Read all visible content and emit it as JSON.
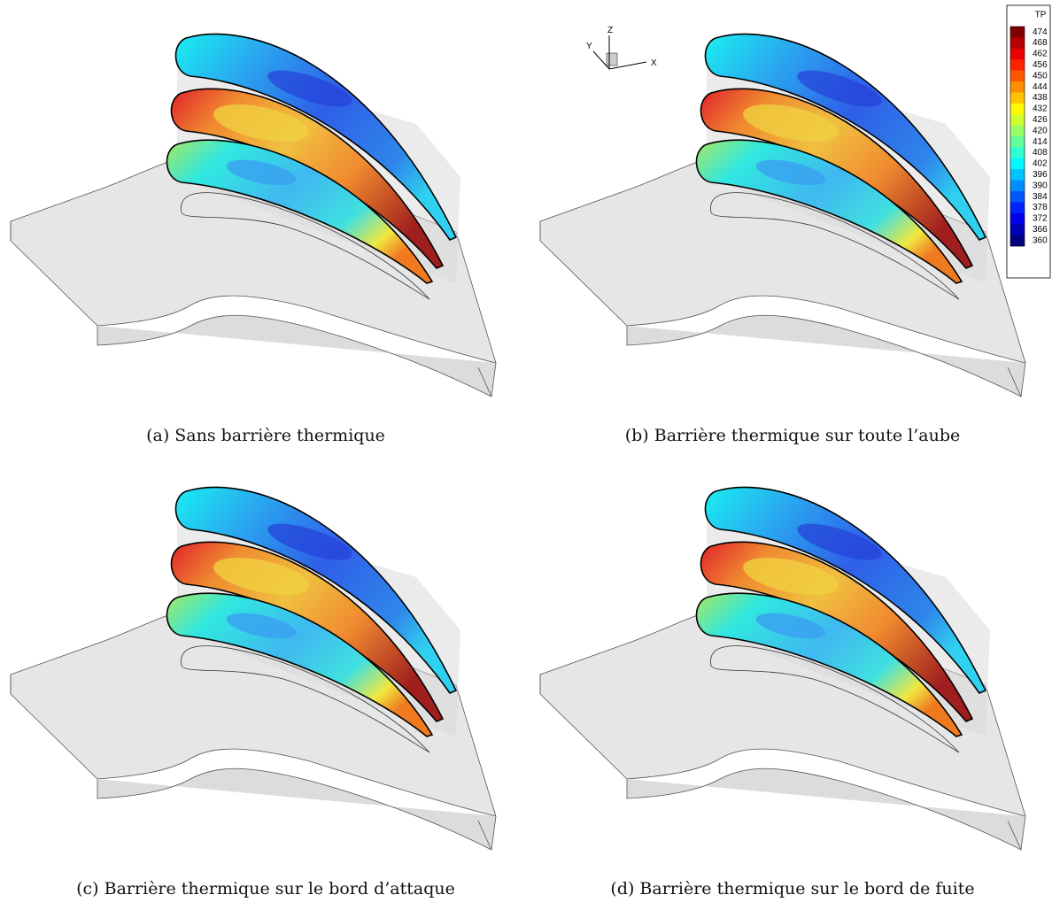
{
  "figure": {
    "captions": [
      "(a) Sans barrière thermique",
      "(b) Barrière thermique sur toute l’aube",
      "(c) Barrière thermique sur le bord d’attaque",
      "(d) Barrière thermique sur le bord de fuite"
    ],
    "axes_triad": {
      "z": "Z",
      "y": "Y",
      "x": "X"
    },
    "legend": {
      "title": "TP",
      "levels": [
        474,
        468,
        462,
        456,
        450,
        444,
        438,
        432,
        426,
        420,
        414,
        408,
        402,
        396,
        390,
        384,
        378,
        372,
        366,
        360
      ]
    }
  }
}
